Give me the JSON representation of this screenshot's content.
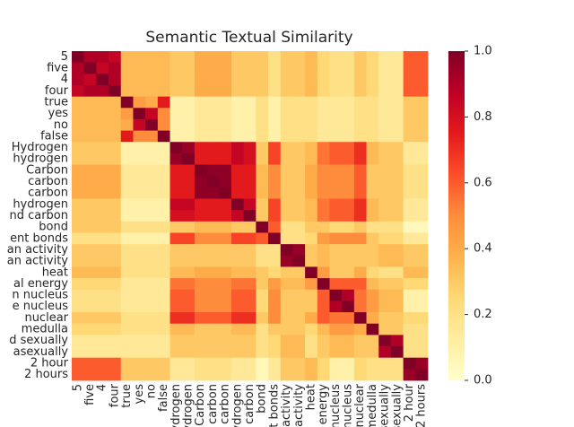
{
  "chart_data": {
    "type": "heatmap",
    "title": "Semantic Textual Similarity",
    "categories": [
      "5",
      "five",
      "4",
      "four",
      "true",
      "yes",
      "no",
      "false",
      "Hydrogen",
      "hydrogen",
      "Carbon",
      "carbon",
      "carbon",
      "hydrogen",
      "nd carbon",
      "bond",
      "ent bonds",
      "an activity",
      "an activity",
      "heat",
      "al energy",
      "n nucleus",
      "e nucleus",
      "nuclear",
      "medulla",
      "d sexually",
      "asexually",
      "2 hour",
      "2 hours"
    ],
    "values": [
      [
        1,
        0.9,
        0.9,
        0.85,
        0.35,
        0.35,
        0.35,
        0.35,
        0.3,
        0.3,
        0.4,
        0.4,
        0.4,
        0.3,
        0.3,
        0.3,
        0.2,
        0.3,
        0.3,
        0.35,
        0.25,
        0.2,
        0.2,
        0.3,
        0.25,
        0.15,
        0.15,
        0.6,
        0.6
      ],
      [
        0.9,
        1,
        0.85,
        0.9,
        0.35,
        0.35,
        0.35,
        0.35,
        0.3,
        0.3,
        0.4,
        0.4,
        0.4,
        0.3,
        0.3,
        0.3,
        0.2,
        0.3,
        0.3,
        0.35,
        0.25,
        0.2,
        0.2,
        0.3,
        0.25,
        0.15,
        0.15,
        0.6,
        0.6
      ],
      [
        0.9,
        0.85,
        1,
        0.9,
        0.35,
        0.35,
        0.35,
        0.35,
        0.3,
        0.3,
        0.4,
        0.4,
        0.4,
        0.3,
        0.3,
        0.3,
        0.2,
        0.3,
        0.3,
        0.35,
        0.25,
        0.2,
        0.2,
        0.3,
        0.25,
        0.15,
        0.15,
        0.6,
        0.6
      ],
      [
        0.85,
        0.9,
        0.9,
        1,
        0.35,
        0.35,
        0.35,
        0.35,
        0.3,
        0.3,
        0.4,
        0.4,
        0.4,
        0.3,
        0.3,
        0.3,
        0.2,
        0.3,
        0.3,
        0.35,
        0.25,
        0.2,
        0.2,
        0.3,
        0.25,
        0.15,
        0.15,
        0.6,
        0.6
      ],
      [
        0.35,
        0.35,
        0.35,
        0.35,
        1,
        0.45,
        0.4,
        0.75,
        0.1,
        0.1,
        0.15,
        0.15,
        0.15,
        0.1,
        0.1,
        0.2,
        0.1,
        0.2,
        0.2,
        0.2,
        0.15,
        0.15,
        0.15,
        0.2,
        0.2,
        0.15,
        0.15,
        0.3,
        0.3
      ],
      [
        0.35,
        0.35,
        0.35,
        0.35,
        0.45,
        1,
        0.85,
        0.5,
        0.1,
        0.1,
        0.15,
        0.15,
        0.15,
        0.1,
        0.1,
        0.2,
        0.1,
        0.2,
        0.2,
        0.2,
        0.15,
        0.15,
        0.15,
        0.2,
        0.2,
        0.15,
        0.15,
        0.3,
        0.3
      ],
      [
        0.35,
        0.35,
        0.35,
        0.35,
        0.4,
        0.85,
        1,
        0.5,
        0.1,
        0.1,
        0.15,
        0.15,
        0.15,
        0.1,
        0.1,
        0.2,
        0.1,
        0.2,
        0.2,
        0.2,
        0.15,
        0.15,
        0.15,
        0.2,
        0.2,
        0.15,
        0.15,
        0.3,
        0.3
      ],
      [
        0.35,
        0.35,
        0.35,
        0.35,
        0.75,
        0.5,
        0.5,
        1,
        0.1,
        0.1,
        0.15,
        0.15,
        0.15,
        0.1,
        0.1,
        0.2,
        0.1,
        0.2,
        0.2,
        0.2,
        0.15,
        0.15,
        0.15,
        0.2,
        0.2,
        0.15,
        0.15,
        0.3,
        0.3
      ],
      [
        0.3,
        0.3,
        0.3,
        0.3,
        0.1,
        0.1,
        0.1,
        0.1,
        1,
        0.95,
        0.75,
        0.75,
        0.75,
        0.85,
        0.8,
        0.3,
        0.65,
        0.3,
        0.3,
        0.35,
        0.55,
        0.6,
        0.6,
        0.7,
        0.35,
        0.3,
        0.3,
        0.15,
        0.15
      ],
      [
        0.3,
        0.3,
        0.3,
        0.3,
        0.1,
        0.1,
        0.1,
        0.1,
        0.95,
        1,
        0.75,
        0.75,
        0.75,
        0.85,
        0.8,
        0.3,
        0.65,
        0.3,
        0.3,
        0.35,
        0.55,
        0.6,
        0.6,
        0.7,
        0.35,
        0.3,
        0.3,
        0.15,
        0.15
      ],
      [
        0.4,
        0.4,
        0.4,
        0.4,
        0.15,
        0.15,
        0.15,
        0.15,
        0.75,
        0.75,
        1,
        0.97,
        0.97,
        0.75,
        0.75,
        0.35,
        0.5,
        0.3,
        0.3,
        0.4,
        0.5,
        0.5,
        0.5,
        0.6,
        0.3,
        0.3,
        0.3,
        0.2,
        0.2
      ],
      [
        0.4,
        0.4,
        0.4,
        0.4,
        0.15,
        0.15,
        0.15,
        0.15,
        0.75,
        0.75,
        0.97,
        1,
        0.97,
        0.75,
        0.75,
        0.35,
        0.5,
        0.3,
        0.3,
        0.4,
        0.5,
        0.5,
        0.5,
        0.6,
        0.3,
        0.3,
        0.3,
        0.2,
        0.2
      ],
      [
        0.4,
        0.4,
        0.4,
        0.4,
        0.15,
        0.15,
        0.15,
        0.15,
        0.75,
        0.75,
        0.97,
        0.97,
        1,
        0.75,
        0.75,
        0.35,
        0.5,
        0.3,
        0.3,
        0.4,
        0.5,
        0.5,
        0.5,
        0.6,
        0.3,
        0.3,
        0.3,
        0.2,
        0.2
      ],
      [
        0.3,
        0.3,
        0.3,
        0.3,
        0.1,
        0.1,
        0.1,
        0.1,
        0.85,
        0.85,
        0.75,
        0.75,
        0.75,
        1,
        0.85,
        0.3,
        0.65,
        0.3,
        0.3,
        0.35,
        0.55,
        0.6,
        0.6,
        0.7,
        0.35,
        0.3,
        0.3,
        0.15,
        0.15
      ],
      [
        0.3,
        0.3,
        0.3,
        0.3,
        0.1,
        0.1,
        0.1,
        0.1,
        0.8,
        0.8,
        0.75,
        0.75,
        0.75,
        0.85,
        1,
        0.3,
        0.65,
        0.3,
        0.3,
        0.35,
        0.55,
        0.6,
        0.6,
        0.7,
        0.35,
        0.3,
        0.3,
        0.15,
        0.15
      ],
      [
        0.3,
        0.3,
        0.3,
        0.3,
        0.2,
        0.2,
        0.2,
        0.2,
        0.3,
        0.3,
        0.35,
        0.35,
        0.35,
        0.3,
        0.3,
        1,
        0.6,
        0.2,
        0.2,
        0.3,
        0.3,
        0.25,
        0.25,
        0.3,
        0.2,
        0.2,
        0.2,
        0.05,
        0.05
      ],
      [
        0.2,
        0.2,
        0.2,
        0.2,
        0.1,
        0.1,
        0.1,
        0.1,
        0.65,
        0.65,
        0.5,
        0.5,
        0.5,
        0.65,
        0.65,
        0.6,
        1,
        0.2,
        0.2,
        0.25,
        0.45,
        0.5,
        0.5,
        0.5,
        0.3,
        0.25,
        0.25,
        0.15,
        0.15
      ],
      [
        0.3,
        0.3,
        0.3,
        0.3,
        0.2,
        0.2,
        0.2,
        0.2,
        0.3,
        0.3,
        0.3,
        0.3,
        0.3,
        0.3,
        0.3,
        0.2,
        0.2,
        1,
        0.95,
        0.3,
        0.35,
        0.3,
        0.3,
        0.3,
        0.3,
        0.35,
        0.35,
        0.3,
        0.3
      ],
      [
        0.3,
        0.3,
        0.3,
        0.3,
        0.2,
        0.2,
        0.2,
        0.2,
        0.3,
        0.3,
        0.3,
        0.3,
        0.3,
        0.3,
        0.3,
        0.2,
        0.2,
        0.95,
        1,
        0.3,
        0.35,
        0.3,
        0.3,
        0.3,
        0.3,
        0.35,
        0.35,
        0.3,
        0.3
      ],
      [
        0.35,
        0.35,
        0.35,
        0.35,
        0.2,
        0.2,
        0.2,
        0.2,
        0.35,
        0.35,
        0.4,
        0.4,
        0.4,
        0.35,
        0.35,
        0.3,
        0.25,
        0.3,
        0.3,
        1,
        0.45,
        0.3,
        0.3,
        0.4,
        0.25,
        0.2,
        0.2,
        0.35,
        0.35
      ],
      [
        0.25,
        0.25,
        0.25,
        0.25,
        0.15,
        0.15,
        0.15,
        0.15,
        0.55,
        0.55,
        0.5,
        0.5,
        0.5,
        0.55,
        0.55,
        0.3,
        0.45,
        0.35,
        0.35,
        0.45,
        1,
        0.6,
        0.6,
        0.6,
        0.35,
        0.3,
        0.3,
        0.25,
        0.25
      ],
      [
        0.2,
        0.2,
        0.2,
        0.2,
        0.15,
        0.15,
        0.15,
        0.15,
        0.6,
        0.6,
        0.5,
        0.5,
        0.5,
        0.6,
        0.6,
        0.25,
        0.5,
        0.3,
        0.3,
        0.3,
        0.6,
        1,
        0.9,
        0.55,
        0.45,
        0.35,
        0.35,
        0.1,
        0.1
      ],
      [
        0.2,
        0.2,
        0.2,
        0.2,
        0.15,
        0.15,
        0.15,
        0.15,
        0.6,
        0.6,
        0.5,
        0.5,
        0.5,
        0.6,
        0.6,
        0.25,
        0.5,
        0.3,
        0.3,
        0.3,
        0.6,
        0.9,
        1,
        0.55,
        0.45,
        0.35,
        0.35,
        0.1,
        0.1
      ],
      [
        0.3,
        0.3,
        0.3,
        0.3,
        0.2,
        0.2,
        0.2,
        0.2,
        0.7,
        0.7,
        0.6,
        0.6,
        0.6,
        0.7,
        0.7,
        0.3,
        0.5,
        0.3,
        0.3,
        0.4,
        0.6,
        0.55,
        0.55,
        1,
        0.4,
        0.3,
        0.3,
        0.25,
        0.25
      ],
      [
        0.25,
        0.25,
        0.25,
        0.25,
        0.2,
        0.2,
        0.2,
        0.2,
        0.35,
        0.35,
        0.3,
        0.3,
        0.3,
        0.35,
        0.35,
        0.2,
        0.3,
        0.3,
        0.3,
        0.25,
        0.35,
        0.45,
        0.45,
        0.4,
        1,
        0.3,
        0.3,
        0.2,
        0.2
      ],
      [
        0.15,
        0.15,
        0.15,
        0.15,
        0.15,
        0.15,
        0.15,
        0.15,
        0.3,
        0.3,
        0.3,
        0.3,
        0.3,
        0.3,
        0.3,
        0.2,
        0.25,
        0.35,
        0.35,
        0.2,
        0.3,
        0.35,
        0.35,
        0.3,
        0.3,
        1,
        0.9,
        0.2,
        0.2
      ],
      [
        0.15,
        0.15,
        0.15,
        0.15,
        0.15,
        0.15,
        0.15,
        0.15,
        0.3,
        0.3,
        0.3,
        0.3,
        0.3,
        0.3,
        0.3,
        0.2,
        0.25,
        0.35,
        0.35,
        0.2,
        0.3,
        0.35,
        0.35,
        0.3,
        0.3,
        0.9,
        1,
        0.2,
        0.2
      ],
      [
        0.6,
        0.6,
        0.6,
        0.6,
        0.3,
        0.3,
        0.3,
        0.3,
        0.15,
        0.15,
        0.2,
        0.2,
        0.2,
        0.15,
        0.15,
        0.05,
        0.15,
        0.3,
        0.3,
        0.35,
        0.25,
        0.1,
        0.1,
        0.25,
        0.2,
        0.2,
        0.2,
        1,
        0.95
      ],
      [
        0.6,
        0.6,
        0.6,
        0.6,
        0.3,
        0.3,
        0.3,
        0.3,
        0.15,
        0.15,
        0.2,
        0.2,
        0.2,
        0.15,
        0.15,
        0.05,
        0.15,
        0.3,
        0.3,
        0.35,
        0.25,
        0.1,
        0.1,
        0.25,
        0.2,
        0.2,
        0.2,
        0.95,
        1
      ]
    ],
    "colormap": "YlOrRd",
    "clim": [
      0,
      1
    ],
    "cticks": [
      {
        "value": 0,
        "label": "0.0"
      },
      {
        "value": 0.2,
        "label": "0.2"
      },
      {
        "value": 0.4,
        "label": "0.4"
      },
      {
        "value": 0.6,
        "label": "0.6"
      },
      {
        "value": 0.8,
        "label": "0.8"
      },
      {
        "value": 1,
        "label": "1.0"
      }
    ]
  }
}
